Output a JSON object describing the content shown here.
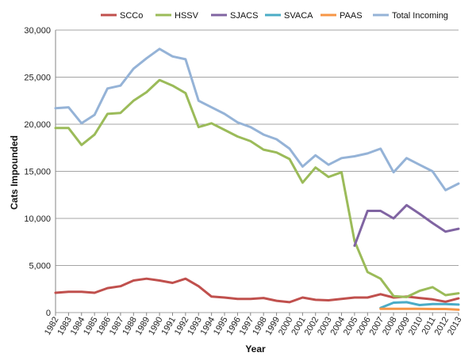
{
  "chart_data": {
    "type": "line",
    "title": "",
    "xlabel": "Year",
    "ylabel": "Cats Impounded",
    "ylim": [
      0,
      30000
    ],
    "yticks": [
      0,
      5000,
      10000,
      15000,
      20000,
      25000,
      30000
    ],
    "ytick_labels": [
      "0",
      "5,000",
      "10,000",
      "15,000",
      "20,000",
      "25,000",
      "30,000"
    ],
    "x": [
      "1982",
      "1983",
      "1984",
      "1985",
      "1986",
      "1987",
      "1988",
      "1989",
      "1990",
      "1991",
      "1992",
      "1993",
      "1994",
      "1995",
      "1996",
      "1997",
      "1998",
      "1999",
      "2000",
      "2001",
      "2002",
      "2003",
      "2004",
      "2005",
      "2006",
      "2007",
      "2008",
      "2009",
      "2010",
      "2011",
      "2012",
      "2013"
    ],
    "grid": "horizontal",
    "legend_position": "top",
    "series": [
      {
        "name": "SCCo",
        "color": "#c0504d",
        "values": [
          2100,
          2200,
          2200,
          2100,
          2600,
          2800,
          3400,
          3600,
          3400,
          3150,
          3600,
          2800,
          1700,
          1600,
          1450,
          1450,
          1550,
          1250,
          1100,
          1600,
          1350,
          1300,
          1450,
          1600,
          1600,
          1950,
          1600,
          1700,
          1550,
          1400,
          1150,
          1500
        ]
      },
      {
        "name": "HSSV",
        "color": "#9bbb59",
        "values": [
          19600,
          19600,
          17800,
          18900,
          21100,
          21200,
          22500,
          23400,
          24700,
          24100,
          23300,
          19700,
          20100,
          19400,
          18700,
          18200,
          17300,
          17000,
          16300,
          13800,
          15400,
          14400,
          14900,
          7600,
          4300,
          3600,
          1750,
          1650,
          2300,
          2700,
          1850,
          2050
        ]
      },
      {
        "name": "SJACS",
        "color": "#8064a2",
        "values": [
          null,
          null,
          null,
          null,
          null,
          null,
          null,
          null,
          null,
          null,
          null,
          null,
          null,
          null,
          null,
          null,
          null,
          null,
          null,
          null,
          null,
          null,
          null,
          7100,
          10800,
          10800,
          10000,
          11400,
          10500,
          9500,
          8600,
          8900
        ]
      },
      {
        "name": "SVACA",
        "color": "#4bacc6",
        "values": [
          null,
          null,
          null,
          null,
          null,
          null,
          null,
          null,
          null,
          null,
          null,
          null,
          null,
          null,
          null,
          null,
          null,
          null,
          null,
          null,
          null,
          null,
          null,
          null,
          null,
          500,
          1050,
          1100,
          800,
          900,
          900,
          850
        ]
      },
      {
        "name": "PAAS",
        "color": "#f79646",
        "values": [
          null,
          null,
          null,
          null,
          null,
          null,
          null,
          null,
          null,
          null,
          null,
          null,
          null,
          null,
          null,
          null,
          null,
          null,
          null,
          null,
          null,
          null,
          null,
          null,
          null,
          400,
          400,
          400,
          400,
          380,
          380,
          300
        ]
      },
      {
        "name": "Total Incoming",
        "color": "#95b3d7",
        "values": [
          21700,
          21800,
          20100,
          21000,
          23800,
          24100,
          25900,
          27000,
          28000,
          27200,
          26900,
          22500,
          21800,
          21100,
          20200,
          19700,
          18900,
          18400,
          17400,
          15500,
          16700,
          15700,
          16400,
          16600,
          16900,
          17400,
          14900,
          16400,
          15700,
          15000,
          13000,
          13700
        ]
      }
    ]
  }
}
